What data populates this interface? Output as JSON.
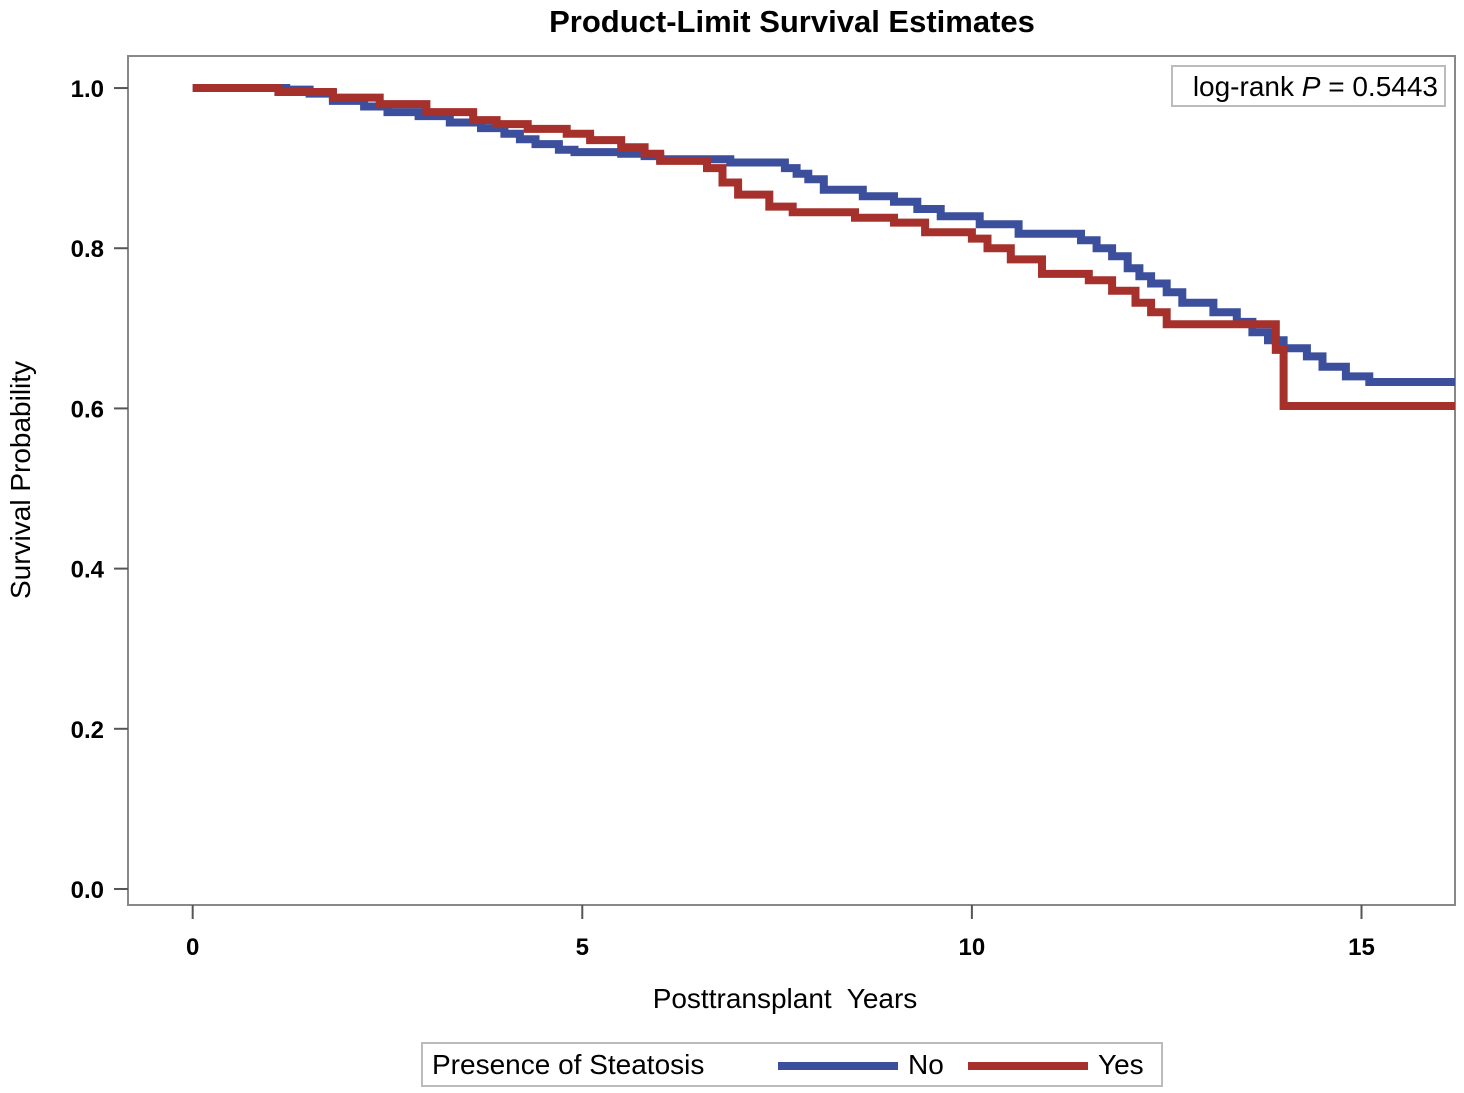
{
  "chart_data": {
    "type": "line",
    "title": "Product-Limit Survival Estimates",
    "xlabel": "Posttransplant  Years",
    "ylabel": "Survival Probability",
    "xlim": [
      -0.83,
      16.2
    ],
    "ylim": [
      -0.02,
      1.04
    ],
    "xticks": [
      0,
      5,
      10,
      15
    ],
    "xtick_labels": [
      "0",
      "5",
      "10",
      "15"
    ],
    "yticks": [
      0.0,
      0.2,
      0.4,
      0.6,
      0.8,
      1.0
    ],
    "ytick_labels": [
      "0.0",
      "0.2",
      "0.4",
      "0.6",
      "0.8",
      "1.0"
    ],
    "grid": false,
    "step": true,
    "annotation": {
      "prefix": "log-rank ",
      "italic": "P",
      "suffix": " = 0.5443",
      "placement": "top-right"
    },
    "legend": {
      "title": "Presence of Steatosis",
      "placement": "bottom-center"
    },
    "series": [
      {
        "name": "No",
        "color": "#3b4f9c",
        "x": [
          0,
          1.2,
          1.5,
          1.8,
          2.2,
          2.5,
          2.9,
          3.3,
          3.7,
          4.0,
          4.2,
          4.4,
          4.7,
          4.9,
          5.5,
          5.8,
          6.0,
          6.9,
          7.6,
          7.75,
          7.9,
          8.1,
          8.6,
          9.0,
          9.3,
          9.6,
          10.1,
          10.6,
          11.4,
          11.6,
          11.8,
          12.0,
          12.15,
          12.3,
          12.5,
          12.7,
          13.1,
          13.4,
          13.6,
          13.8,
          14.0,
          14.3,
          14.5,
          14.8,
          15.1,
          16.2
        ],
        "y": [
          1.0,
          0.998,
          0.993,
          0.984,
          0.977,
          0.97,
          0.965,
          0.957,
          0.95,
          0.943,
          0.936,
          0.93,
          0.923,
          0.92,
          0.918,
          0.915,
          0.911,
          0.907,
          0.9,
          0.893,
          0.886,
          0.873,
          0.865,
          0.858,
          0.849,
          0.84,
          0.83,
          0.818,
          0.81,
          0.8,
          0.79,
          0.775,
          0.765,
          0.756,
          0.745,
          0.732,
          0.72,
          0.708,
          0.695,
          0.685,
          0.675,
          0.665,
          0.652,
          0.64,
          0.633,
          0.633
        ]
      },
      {
        "name": "Yes",
        "color": "#a5302c",
        "x": [
          0,
          1.1,
          1.8,
          2.4,
          3.0,
          3.6,
          3.9,
          4.3,
          4.8,
          5.1,
          5.5,
          5.8,
          6.0,
          6.6,
          6.8,
          7.0,
          7.4,
          7.7,
          8.5,
          9.0,
          9.4,
          10.0,
          10.2,
          10.5,
          10.9,
          11.5,
          11.8,
          12.1,
          12.3,
          12.5,
          12.7,
          13.3,
          13.8,
          13.9,
          14.0,
          16.2
        ],
        "y": [
          1.0,
          0.995,
          0.988,
          0.98,
          0.97,
          0.96,
          0.955,
          0.949,
          0.943,
          0.935,
          0.926,
          0.918,
          0.909,
          0.9,
          0.882,
          0.867,
          0.852,
          0.845,
          0.838,
          0.832,
          0.82,
          0.812,
          0.8,
          0.786,
          0.768,
          0.76,
          0.747,
          0.732,
          0.72,
          0.705,
          0.705,
          0.705,
          0.705,
          0.673,
          0.603,
          0.603
        ]
      }
    ]
  }
}
